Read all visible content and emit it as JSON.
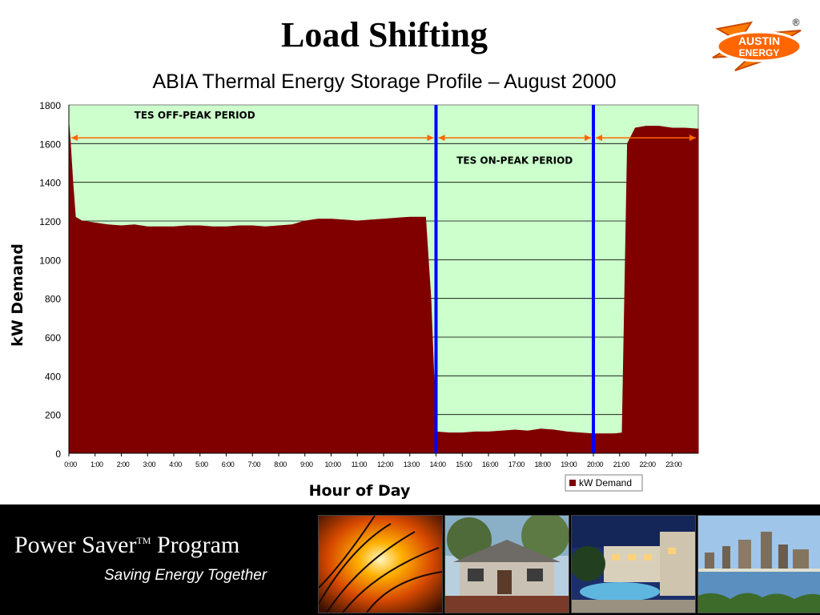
{
  "slide": {
    "title": "Load Shifting",
    "subtitle": "ABIA Thermal Energy Storage Profile – August 2000"
  },
  "logo": {
    "line1": "AUSTIN",
    "line2": "ENERGY",
    "registered": "®",
    "icon": "lightning-bolt-logo"
  },
  "footer": {
    "program": "Power Saver",
    "trademark": "TM",
    "program_suffix": " Program",
    "tagline": "Saving Energy Together",
    "photos": [
      "sunset-grass-photo",
      "house-photo",
      "apartment-pool-photo",
      "city-skyline-lake-photo"
    ]
  },
  "colors": {
    "plot_bg": "#ccffcc",
    "area": "#800000",
    "marker": "#0000ff",
    "arrow": "#ff6600"
  },
  "chart_data": {
    "type": "area",
    "xlabel": "Hour of Day",
    "ylabel": "kW Demand",
    "ylim": [
      0,
      1800
    ],
    "yticks": [
      0,
      200,
      400,
      600,
      800,
      1000,
      1200,
      1400,
      1600,
      1800
    ],
    "xticks": [
      "0:00",
      "1:00",
      "2:00",
      "3:00",
      "4:00",
      "5:00",
      "6:00",
      "7:00",
      "8:00",
      "9:00",
      "10:00",
      "11:00",
      "12:00",
      "13:00",
      "14:00",
      "15:00",
      "16:00",
      "17:00",
      "18:00",
      "19:00",
      "20:00",
      "21:00",
      "22:00",
      "23:00"
    ],
    "xlim_hours": [
      0,
      24
    ],
    "grid": "horizontal",
    "legend": {
      "placement": "bottom-right",
      "label": "kW Demand"
    },
    "series": [
      {
        "name": "kW Demand",
        "x": [
          0,
          0.05,
          0.15,
          0.25,
          0.5,
          1,
          1.5,
          2,
          2.5,
          3,
          3.5,
          4,
          4.5,
          5,
          5.5,
          6,
          6.5,
          7,
          7.5,
          8,
          8.5,
          9,
          9.5,
          10,
          10.5,
          11,
          11.5,
          12,
          12.5,
          13,
          13.3,
          13.6,
          13.8,
          14,
          14.5,
          15,
          15.5,
          16,
          16.5,
          17,
          17.5,
          18,
          18.5,
          19,
          19.5,
          20,
          20.5,
          20.8,
          21.1,
          21.3,
          21.6,
          22,
          22.5,
          23,
          23.5,
          24
        ],
        "y": [
          1700,
          1620,
          1400,
          1220,
          1200,
          1190,
          1180,
          1175,
          1180,
          1170,
          1170,
          1170,
          1175,
          1175,
          1170,
          1170,
          1175,
          1175,
          1170,
          1175,
          1180,
          1200,
          1210,
          1210,
          1205,
          1200,
          1205,
          1210,
          1215,
          1220,
          1220,
          1220,
          800,
          110,
          105,
          105,
          110,
          110,
          115,
          120,
          115,
          125,
          120,
          110,
          105,
          100,
          100,
          100,
          105,
          1600,
          1680,
          1690,
          1690,
          1680,
          1680,
          1675
        ]
      }
    ],
    "markers": [
      {
        "x": 14,
        "label": ""
      },
      {
        "x": 20,
        "label": ""
      }
    ],
    "annotations": [
      {
        "text": "TES OFF-PEAK PERIOD",
        "from": 0,
        "to": 14,
        "label_x": 4.8,
        "label_y": 1730
      },
      {
        "text": "TES ON-PEAK PERIOD",
        "from": 14,
        "to": 20,
        "label_x": 17,
        "label_y": 1495
      },
      {
        "text": "",
        "from": 20,
        "to": 24
      }
    ],
    "arrow_y": 1630
  }
}
